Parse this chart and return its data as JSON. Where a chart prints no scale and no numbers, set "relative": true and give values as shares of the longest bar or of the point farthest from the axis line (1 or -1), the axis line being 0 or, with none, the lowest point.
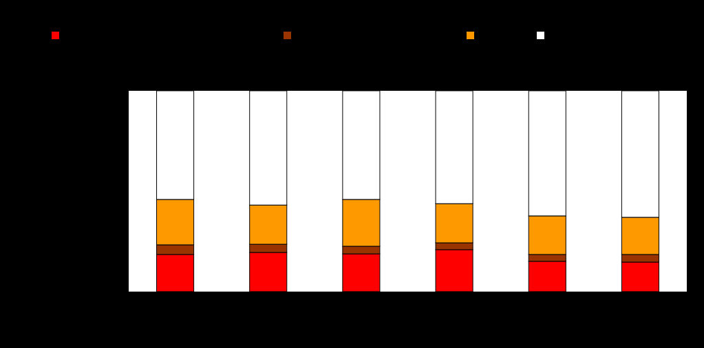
{
  "chart_data": {
    "type": "bar",
    "stacked": true,
    "relative": true,
    "categories": [
      null,
      null,
      null,
      null,
      null,
      null
    ],
    "series": [
      {
        "color": "#ff0000",
        "values": [
          0.185,
          0.195,
          0.188,
          0.209,
          0.151,
          0.147
        ]
      },
      {
        "color": "#993300",
        "values": [
          0.048,
          0.041,
          0.038,
          0.034,
          0.034,
          0.038
        ]
      },
      {
        "color": "#ff9900",
        "values": [
          0.226,
          0.195,
          0.233,
          0.195,
          0.192,
          0.185
        ]
      },
      {
        "color": "#ffffff",
        "values": [
          0.541,
          0.569,
          0.541,
          0.562,
          0.623,
          0.63
        ]
      }
    ]
  }
}
